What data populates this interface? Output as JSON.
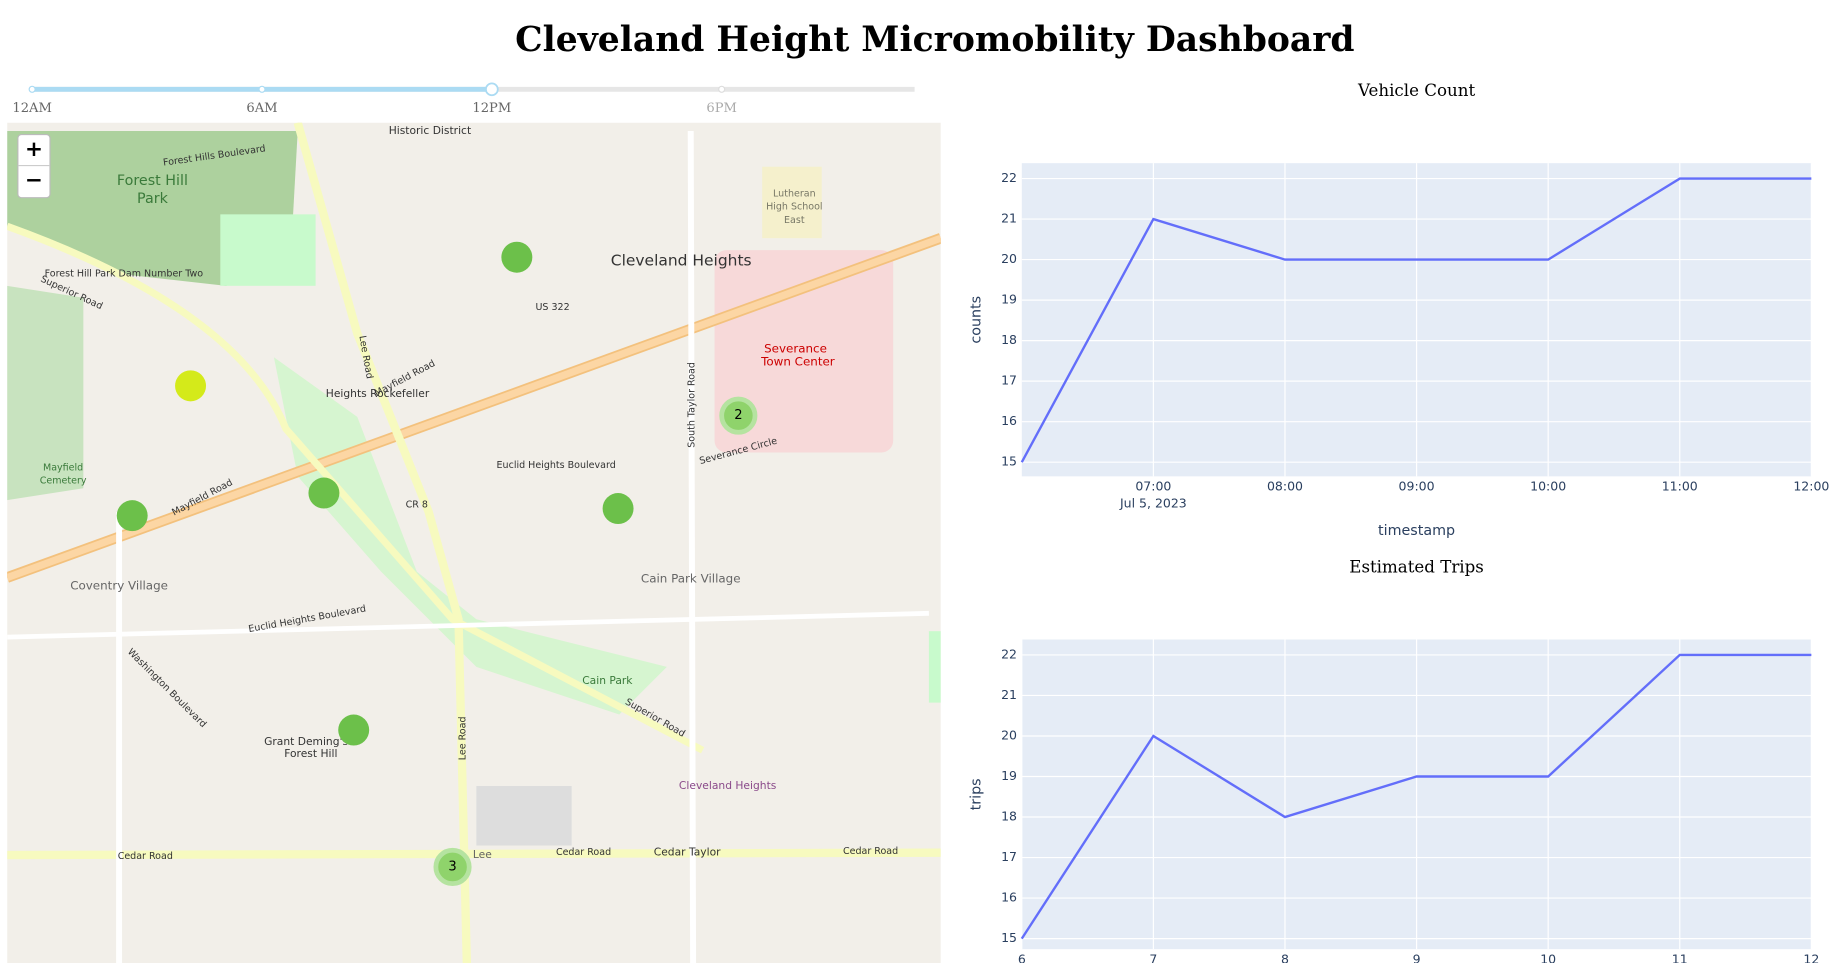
{
  "header": {
    "title": "Cleveland Height Micromobility Dashboard"
  },
  "slider": {
    "marks": [
      "12AM",
      "6AM",
      "12PM",
      "6PM"
    ],
    "selected": "12PM"
  },
  "map": {
    "zoom_in": "+",
    "zoom_out": "−",
    "clusters": [
      "2",
      "3"
    ],
    "labels": [
      "Historic District",
      "Forest Hills Boulevard",
      "Forest Hill",
      "Park",
      "Cleveland Heights",
      "Forest Hill Park Dam Number Two",
      "Superior Road",
      "US 322",
      "Mayfield Road",
      "Heights Rockefeller",
      "Severance",
      "Town Center",
      "Lutheran",
      "High School",
      "East",
      "Mayfield Road",
      "Mayfield",
      "Cemetery",
      "Lee Road",
      "Euclid Heights Boulevard",
      "CR 8",
      "Coventry Village",
      "Cain Park Village",
      "Euclid Heights Boulevard",
      "Cain Park",
      "Superior Road",
      "Grant Deming's",
      "Forest Hill",
      "Cleveland Heights",
      "Cedar Road",
      "Cedar Road",
      "Cedar Taylor",
      "Cedar Road",
      "Lee",
      "South Taylor Road",
      "Washington Boulevard",
      "Severance Circle",
      "Lee Road"
    ]
  },
  "chart_data": [
    {
      "type": "line",
      "title": "Vehicle Count",
      "x_label": "timestamp",
      "y_label": "counts",
      "x_date_label": "Jul 5, 2023",
      "color": "#636efa",
      "x": [
        "2023-07-05 06:00",
        "2023-07-05 07:00",
        "2023-07-05 08:00",
        "2023-07-05 09:00",
        "2023-07-05 10:00",
        "2023-07-05 11:00",
        "2023-07-05 12:00"
      ],
      "values": [
        15,
        21,
        20,
        20,
        20,
        22,
        22
      ],
      "xlim": [
        "2023-07-05 06:00",
        "2023-07-05 12:00"
      ],
      "xticks": [
        {
          "value": "2023-07-05 07:00",
          "label": "07:00"
        },
        {
          "value": "2023-07-05 08:00",
          "label": "08:00"
        },
        {
          "value": "2023-07-05 09:00",
          "label": "09:00"
        },
        {
          "value": "2023-07-05 10:00",
          "label": "10:00"
        },
        {
          "value": "2023-07-05 11:00",
          "label": "11:00"
        },
        {
          "value": "2023-07-05 12:00",
          "label": "12:00"
        }
      ],
      "ylim": [
        14.65,
        22.38
      ],
      "yticks": [
        15,
        16,
        17,
        18,
        19,
        20,
        21,
        22
      ],
      "grid": true
    },
    {
      "type": "line",
      "title": "Estimated Trips",
      "y_label": "trips",
      "color": "#636efa",
      "x": [
        6,
        7,
        8,
        9,
        10,
        11,
        12
      ],
      "values": [
        15,
        20,
        18,
        19,
        19,
        22,
        22
      ],
      "xlim": [
        6,
        12
      ],
      "xticks": [
        6,
        7,
        8,
        9,
        10,
        11,
        12
      ],
      "ylim": [
        14.74,
        22.38
      ],
      "yticks": [
        15,
        16,
        17,
        18,
        19,
        20,
        21,
        22
      ],
      "grid": true
    }
  ]
}
